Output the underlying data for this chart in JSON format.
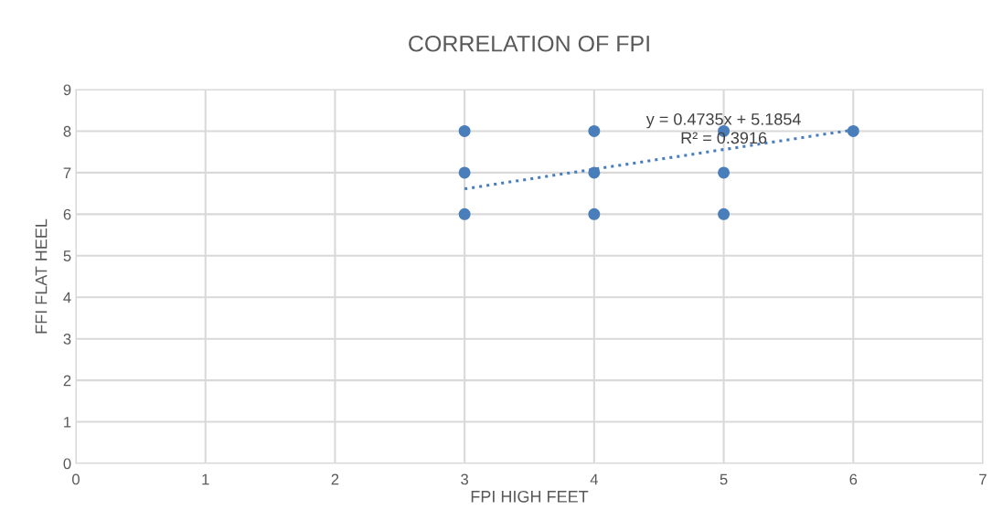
{
  "chart_data": {
    "type": "scatter",
    "title": "CORRELATION OF FPI",
    "xlabel": "FPI HIGH FEET",
    "ylabel": "FFI FLAT HEEL",
    "series": [
      {
        "color": "#4a7ebb",
        "x": [
          3,
          3,
          3,
          4,
          4,
          4,
          5,
          5,
          5,
          6
        ],
        "values": [
          8,
          7,
          6,
          8,
          7,
          6,
          8,
          7,
          6,
          8
        ],
        "marker": "circle"
      },
      {
        "type": "line",
        "color": "#4a7ebb",
        "x": [
          3,
          6
        ],
        "values": [
          6.61,
          8.03
        ],
        "line_style": "dotted",
        "marker": "none"
      }
    ],
    "annotations": [
      "y = 0.4735x + 5.1854",
      "R² = 0.3916"
    ],
    "xlim": [
      0,
      7
    ],
    "xticks": [
      0,
      1,
      2,
      3,
      4,
      5,
      6,
      7
    ],
    "ylim": [
      0,
      9
    ],
    "yticks": [
      0,
      1,
      2,
      3,
      4,
      5,
      6,
      7,
      8,
      9
    ],
    "grid": true
  }
}
